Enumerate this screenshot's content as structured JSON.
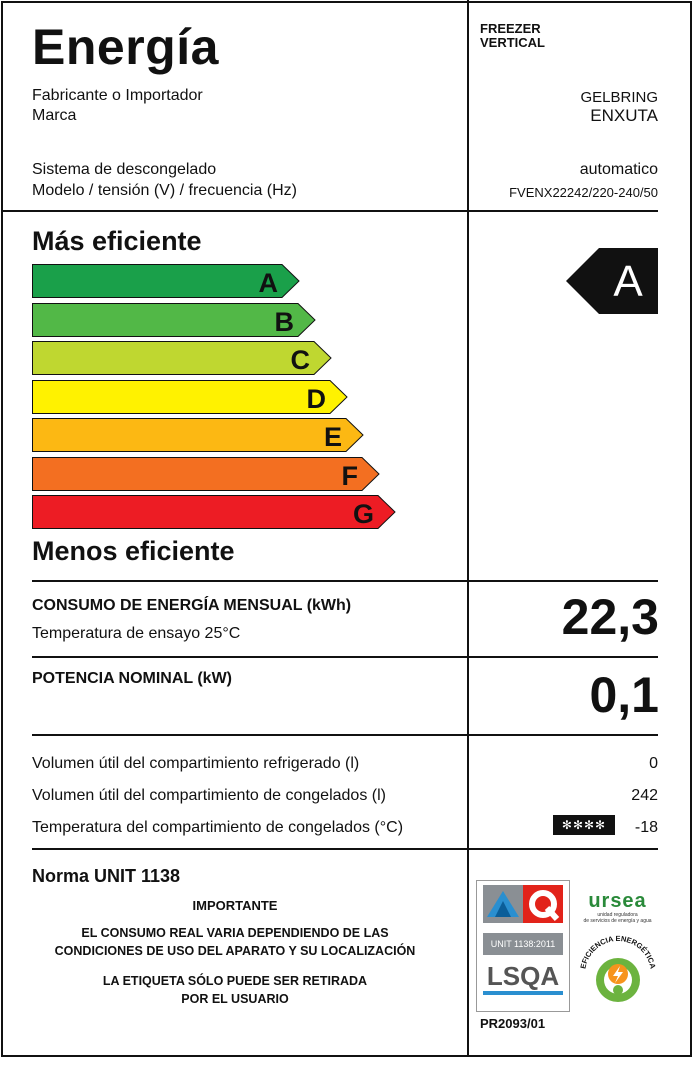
{
  "header": {
    "title": "Energía",
    "category_line1": "FREEZER",
    "category_line2": "VERTICAL"
  },
  "info": {
    "fabricante_label": "Fabricante o Importador",
    "fabricante_value": "GELBRING",
    "marca_label": "Marca",
    "marca_value": "ENXUTA",
    "descongelado_label": "Sistema de descongelado",
    "descongelado_value": "automatico",
    "modelo_label": "Modelo / tensión (V) / frecuencia (Hz)",
    "modelo_value": "FVENX22242/220-240/50"
  },
  "scale": {
    "top_label": "Más eficiente",
    "bottom_label": "Menos eficiente",
    "classes": [
      {
        "letter": "A",
        "color": "#1aa04a"
      },
      {
        "letter": "B",
        "color": "#52b847"
      },
      {
        "letter": "C",
        "color": "#bfd730"
      },
      {
        "letter": "D",
        "color": "#fff200"
      },
      {
        "letter": "E",
        "color": "#fcb813"
      },
      {
        "letter": "F",
        "color": "#f36f21"
      },
      {
        "letter": "G",
        "color": "#ed1c24"
      }
    ],
    "rating": "A"
  },
  "consumo": {
    "label": "CONSUMO DE ENERGÍA MENSUAL (kWh)",
    "sub_label": "Temperatura de ensayo 25°C",
    "value": "22,3"
  },
  "potencia": {
    "label": "POTENCIA NOMINAL (kW)",
    "value": "0,1"
  },
  "volumes": {
    "refrigerado_label": "Volumen útil del compartimiento refrigerado (l)",
    "refrigerado_value": "0",
    "congelados_label": "Volumen útil del compartimiento de congelados (l)",
    "congelados_value": "242",
    "temperatura_label": "Temperatura del compartimiento de congelados (°C)",
    "star_symbol": "✻✻✻✻",
    "temperatura_value": "-18"
  },
  "norma": {
    "title": "Norma UNIT 1138",
    "importante": "IMPORTANTE",
    "line1": "EL CONSUMO REAL VARIA DEPENDIENDO DE LAS",
    "line2": "CONDICIONES DE USO DEL APARATO Y SU LOCALIZACIÓN",
    "line3": "LA ETIQUETA SÓLO PUEDE SER RETIRADA",
    "line4": "POR EL USUARIO"
  },
  "logos": {
    "unit_text": "UNIT 1138:2011",
    "lsqa_text": "LSQA",
    "cert_code": "PR2093/01",
    "ursea_text": "ursea",
    "ursea_sub1": "unidad reguladora",
    "ursea_sub2": "de servicios de energía y agua",
    "eficiencia_text": "EFICIENCIA ENERGÉTICA"
  }
}
